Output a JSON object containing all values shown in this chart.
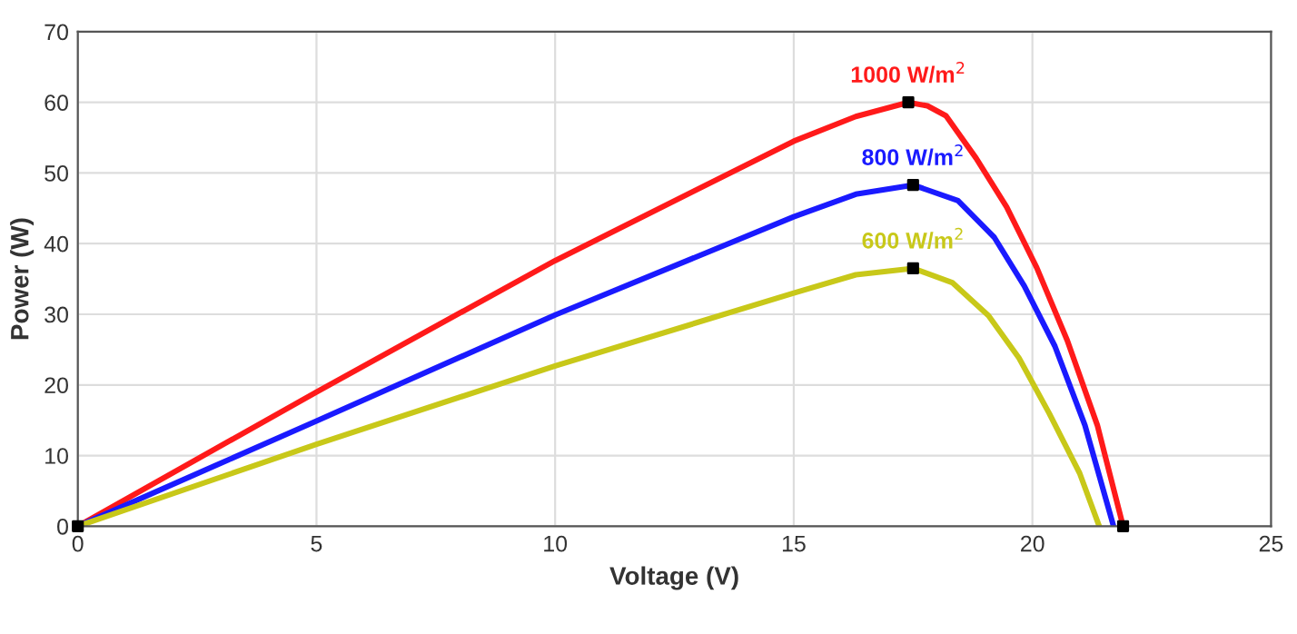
{
  "chart_data": {
    "type": "line",
    "xlabel": "Voltage (V)",
    "ylabel": "Power (W)",
    "xlim": [
      0,
      25
    ],
    "ylim": [
      0,
      70
    ],
    "xticks": [
      0,
      5,
      10,
      15,
      20,
      25
    ],
    "yticks": [
      0,
      10,
      20,
      30,
      40,
      50,
      60,
      70
    ],
    "grid": true,
    "legend": false,
    "line_style": "solid",
    "marker": "none",
    "series": [
      {
        "name": "1000 W/m$^{2}$",
        "color": "#ff1a1a",
        "x": [
          0,
          5,
          10,
          15,
          16.3,
          17.4,
          17.8,
          18.19,
          18.82,
          19.46,
          20.09,
          20.73,
          21.36,
          21.9
        ],
        "values": [
          0,
          19,
          37.6,
          54.5,
          58,
          60,
          59.5,
          58.1,
          52.1,
          45.2,
          36.6,
          26.3,
          14.3,
          0
        ]
      },
      {
        "name": "800 W/m$^{2}$",
        "color": "#1a1aff",
        "x": [
          0,
          5,
          10,
          15,
          16.3,
          17.5,
          18.44,
          19.2,
          19.83,
          20.47,
          21.1,
          21.7
        ],
        "values": [
          0,
          14.9,
          29.9,
          43.8,
          47,
          48.3,
          46.1,
          40.9,
          34,
          25.5,
          14.3,
          0
        ]
      },
      {
        "name": "600 W/m$^{2}$",
        "color": "#c8c819",
        "x": [
          0,
          5,
          10,
          15,
          16.3,
          17.5,
          18.32,
          19.08,
          19.72,
          20.35,
          20.99,
          21.4
        ],
        "values": [
          0,
          11.6,
          22.7,
          33,
          35.6,
          36.5,
          34.5,
          29.8,
          23.8,
          16,
          7.5,
          0
        ]
      },
      {
        "type": "scatter",
        "color": "#000000",
        "marker": "square",
        "x": [
          0,
          17.4,
          17.5,
          17.5,
          21.9
        ],
        "values": [
          0,
          60,
          48.3,
          36.5,
          0
        ]
      }
    ]
  }
}
